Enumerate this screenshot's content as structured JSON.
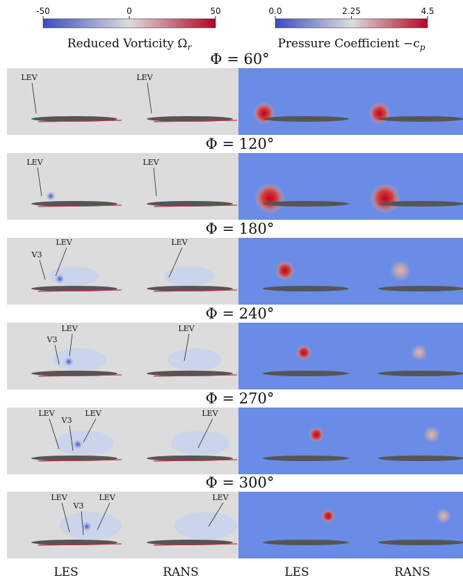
{
  "colorbars": [
    {
      "label": "Reduced Vorticity Ω",
      "subscript": "r",
      "lim": [
        -50,
        50
      ],
      "ticks": [
        -50,
        0,
        50
      ]
    },
    {
      "label": "Pressure Coefficient −c",
      "subscript": "p",
      "lim": [
        0,
        4.5
      ],
      "ticks": [
        {
          "value": 0,
          "label": "0.0"
        },
        2.25,
        4.5
      ]
    }
  ],
  "rows": [
    {
      "title": "Φ = 60°",
      "annotations": [
        "LEV",
        "LEV"
      ]
    },
    {
      "title": "Φ = 120°",
      "annotations": [
        "LEV",
        "LEV"
      ]
    },
    {
      "title": "Φ = 180°",
      "annotations": [
        "LEV",
        "V3",
        "LEV"
      ]
    },
    {
      "title": "Φ = 240°",
      "annotations": [
        "LEV",
        "V3",
        "LEV"
      ]
    },
    {
      "title": "Φ = 270°",
      "annotations": [
        "LEV",
        "V3",
        "LEV",
        "LEV"
      ]
    },
    {
      "title": "Φ = 300°",
      "annotations": [
        "LEV",
        "V3",
        "LEV",
        "LEV"
      ]
    }
  ],
  "columns": [
    "LES",
    "RANS",
    "LES",
    "RANS"
  ]
}
